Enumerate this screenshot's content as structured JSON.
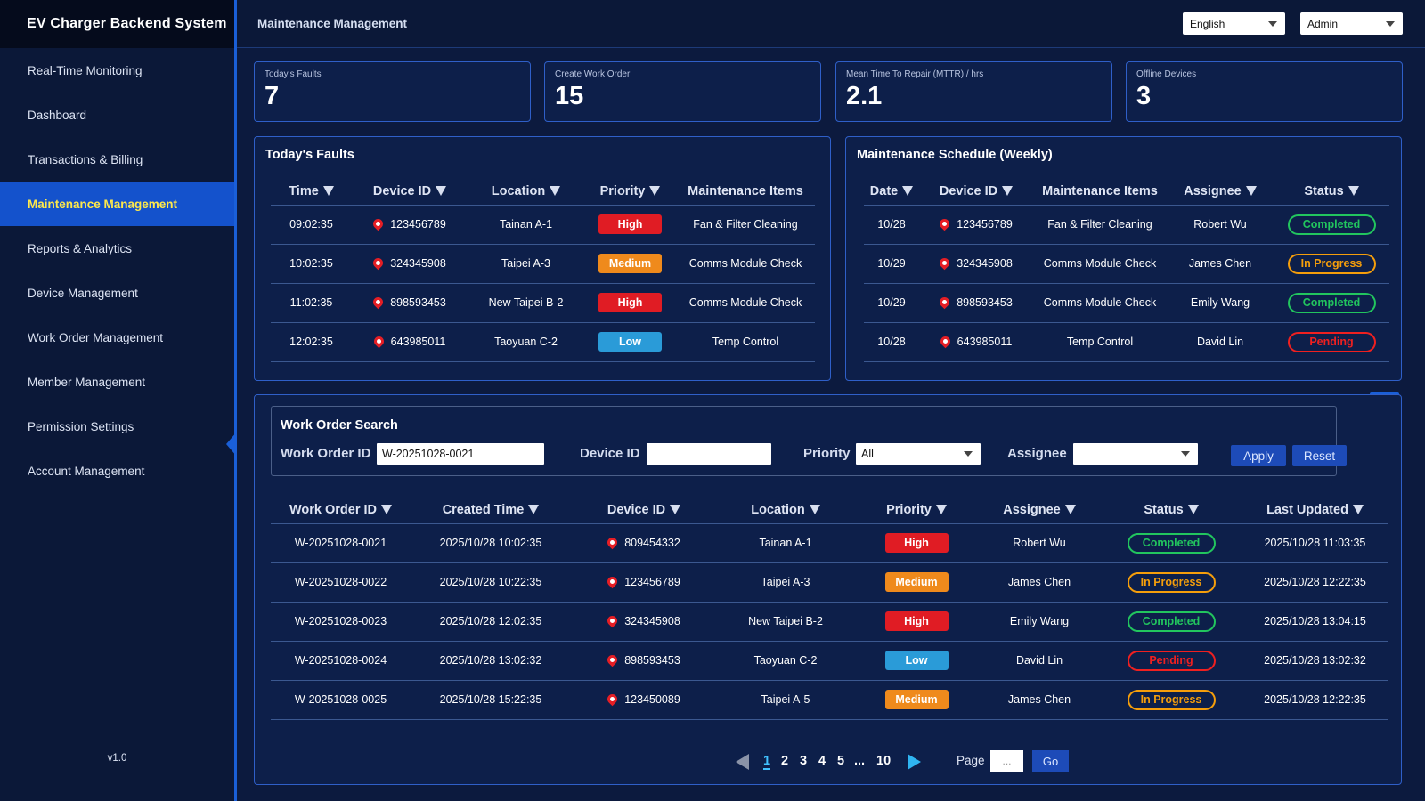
{
  "sidebar": {
    "brand": "EV Charger Backend System",
    "items": [
      {
        "label": "Real-Time Monitoring"
      },
      {
        "label": "Dashboard"
      },
      {
        "label": "Transactions & Billing"
      },
      {
        "label": "Maintenance Management"
      },
      {
        "label": "Reports & Analytics"
      },
      {
        "label": "Device Management"
      },
      {
        "label": "Work Order Management"
      },
      {
        "label": "Member Management"
      },
      {
        "label": "Permission Settings"
      },
      {
        "label": "Account Management"
      }
    ],
    "active_index": 3,
    "version": "v1.0"
  },
  "header": {
    "title": "Maintenance Management",
    "language": "English",
    "user": "Admin"
  },
  "kpis": [
    {
      "label": "Today's Faults",
      "value": "7"
    },
    {
      "label": "Create Work Order",
      "value": "15"
    },
    {
      "label": "Mean Time To Repair (MTTR) / hrs",
      "value": "2.1"
    },
    {
      "label": "Offline Devices",
      "value": "3"
    }
  ],
  "faults": {
    "title": "Today's Faults",
    "columns": [
      "Time",
      "Device ID",
      "Location",
      "Priority",
      "Maintenance Items"
    ],
    "rows": [
      {
        "time": "09:02:35",
        "device": "123456789",
        "location": "Tainan A-1",
        "priority": "High",
        "item": "Fan & Filter Cleaning"
      },
      {
        "time": "10:02:35",
        "device": "324345908",
        "location": "Taipei A-3",
        "priority": "Medium",
        "item": "Comms Module Check"
      },
      {
        "time": "11:02:35",
        "device": "898593453",
        "location": "New Taipei B-2",
        "priority": "High",
        "item": "Comms Module Check"
      },
      {
        "time": "12:02:35",
        "device": "643985011",
        "location": "Taoyuan C-2",
        "priority": "Low",
        "item": "Temp Control"
      }
    ]
  },
  "schedule": {
    "title": "Maintenance Schedule (Weekly)",
    "columns": [
      "Date",
      "Device ID",
      "Maintenance Items",
      "Assignee",
      "Status"
    ],
    "rows": [
      {
        "date": "10/28",
        "device": "123456789",
        "item": "Fan & Filter Cleaning",
        "assignee": "Robert Wu",
        "status": "Completed"
      },
      {
        "date": "10/29",
        "device": "324345908",
        "item": "Comms Module Check",
        "assignee": "James Chen",
        "status": "In Progress"
      },
      {
        "date": "10/29",
        "device": "898593453",
        "item": "Comms Module Check",
        "assignee": "Emily Wang",
        "status": "Completed"
      },
      {
        "date": "10/28",
        "device": "643985011",
        "item": "Temp Control",
        "assignee": "David Lin",
        "status": "Pending"
      }
    ]
  },
  "search": {
    "title": "Work Order Search",
    "work_order_label": "Work Order ID",
    "work_order_value": "W-20251028-0021",
    "device_label": "Device ID",
    "device_value": "",
    "priority_label": "Priority",
    "priority_value": "All",
    "assignee_label": "Assignee",
    "assignee_value": "",
    "apply_label": "Apply",
    "reset_label": "Reset"
  },
  "work_orders": {
    "columns": [
      "Work Order ID",
      "Created Time",
      "Device ID",
      "Location",
      "Priority",
      "Assignee",
      "Status",
      "Last Updated"
    ],
    "rows": [
      {
        "id": "W-20251028-0021",
        "created": "2025/10/28 10:02:35",
        "device": "809454332",
        "location": "Tainan A-1",
        "priority": "High",
        "assignee": "Robert Wu",
        "status": "Completed",
        "updated": "2025/10/28 11:03:35"
      },
      {
        "id": "W-20251028-0022",
        "created": "2025/10/28 10:22:35",
        "device": "123456789",
        "location": "Taipei A-3",
        "priority": "Medium",
        "assignee": "James Chen",
        "status": "In Progress",
        "updated": "2025/10/28 12:22:35"
      },
      {
        "id": "W-20251028-0023",
        "created": "2025/10/28 12:02:35",
        "device": "324345908",
        "location": "New Taipei B-2",
        "priority": "High",
        "assignee": "Emily Wang",
        "status": "Completed",
        "updated": "2025/10/28 13:04:15"
      },
      {
        "id": "W-20251028-0024",
        "created": "2025/10/28 13:02:32",
        "device": "898593453",
        "location": "Taoyuan C-2",
        "priority": "Low",
        "assignee": "David Lin",
        "status": "Pending",
        "updated": "2025/10/28 13:02:32"
      },
      {
        "id": "W-20251028-0025",
        "created": "2025/10/28 15:22:35",
        "device": "123450089",
        "location": "Taipei A-5",
        "priority": "Medium",
        "assignee": "James Chen",
        "status": "In Progress",
        "updated": "2025/10/28 12:22:35"
      }
    ]
  },
  "pagination": {
    "pages": [
      "1",
      "2",
      "3",
      "4",
      "5",
      "...",
      "10"
    ],
    "current": "1",
    "page_label": "Page",
    "page_input": "...",
    "go_label": "Go"
  },
  "colors": {
    "background": "#0c1a3e",
    "accent": "#1452cc",
    "active_text": "#ffe94a",
    "high": "#e01c24",
    "medium": "#ef8a1c",
    "low": "#2a9bd8",
    "completed": "#22c55e",
    "in_progress": "#f59e0b",
    "pending": "#ef2020"
  },
  "icons": {
    "device_pin": "map-pin-icon",
    "sort": "sort-down-icon",
    "collapse": "chevron-up-icon"
  }
}
